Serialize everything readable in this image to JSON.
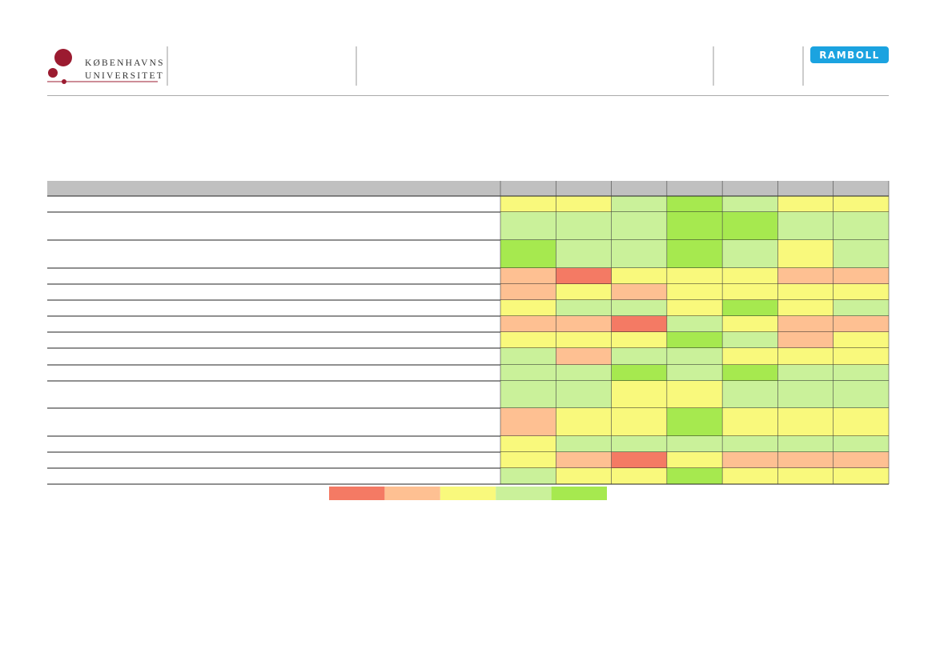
{
  "header": {
    "university": [
      "KØBENHAVNS",
      "UNIVERSITET"
    ],
    "partner": "RAMBOLL"
  },
  "table": {
    "header_color": "#c0c0c0",
    "rows": [
      [
        "#f9f97c",
        "#f9f97c",
        "#caf19a",
        "#a6e94f",
        "#caf19a",
        "#f9f97c",
        "#f9f97c"
      ],
      [
        "#caf19a",
        "#caf19a",
        "#caf19a",
        "#a6e94f",
        "#a6e94f",
        "#caf19a",
        "#caf19a"
      ],
      [
        "#a6e94f",
        "#caf19a",
        "#caf19a",
        "#a6e94f",
        "#caf19a",
        "#f9f97c",
        "#caf19a"
      ],
      [
        "#fec092",
        "#f47a64",
        "#f9f97c",
        "#f9f97c",
        "#f9f97c",
        "#fec092",
        "#fec092"
      ],
      [
        "#fec092",
        "#f9f97c",
        "#fec092",
        "#f9f97c",
        "#f9f97c",
        "#f9f97c",
        "#f9f97c"
      ],
      [
        "#f9f97c",
        "#caf19a",
        "#caf19a",
        "#f9f97c",
        "#a6e94f",
        "#f9f97c",
        "#caf19a"
      ],
      [
        "#fec092",
        "#fec092",
        "#f47a64",
        "#caf19a",
        "#f9f97c",
        "#fec092",
        "#fec092"
      ],
      [
        "#f9f97c",
        "#f9f97c",
        "#f9f97c",
        "#a6e94f",
        "#caf19a",
        "#fec092",
        "#f9f97c"
      ],
      [
        "#caf19a",
        "#fec092",
        "#caf19a",
        "#caf19a",
        "#f9f97c",
        "#f9f97c",
        "#f9f97c"
      ],
      [
        "#caf19a",
        "#caf19a",
        "#a6e94f",
        "#caf19a",
        "#a6e94f",
        "#caf19a",
        "#caf19a"
      ],
      [
        "#caf19a",
        "#caf19a",
        "#f9f97c",
        "#f9f97c",
        "#caf19a",
        "#caf19a",
        "#caf19a"
      ],
      [
        "#fec092",
        "#f9f97c",
        "#f9f97c",
        "#a6e94f",
        "#f9f97c",
        "#f9f97c",
        "#f9f97c"
      ],
      [
        "#f9f97c",
        "#caf19a",
        "#caf19a",
        "#caf19a",
        "#caf19a",
        "#caf19a",
        "#caf19a"
      ],
      [
        "#f9f97c",
        "#fec092",
        "#f47a64",
        "#f9f97c",
        "#fec092",
        "#fec092",
        "#fec092"
      ],
      [
        "#caf19a",
        "#f9f97c",
        "#f9f97c",
        "#a6e94f",
        "#f9f97c",
        "#f9f97c",
        "#f9f97c"
      ]
    ]
  },
  "legend": {
    "colors": [
      "#f47a64",
      "#fec092",
      "#f9f97c",
      "#caf19a",
      "#a6e94f"
    ]
  }
}
